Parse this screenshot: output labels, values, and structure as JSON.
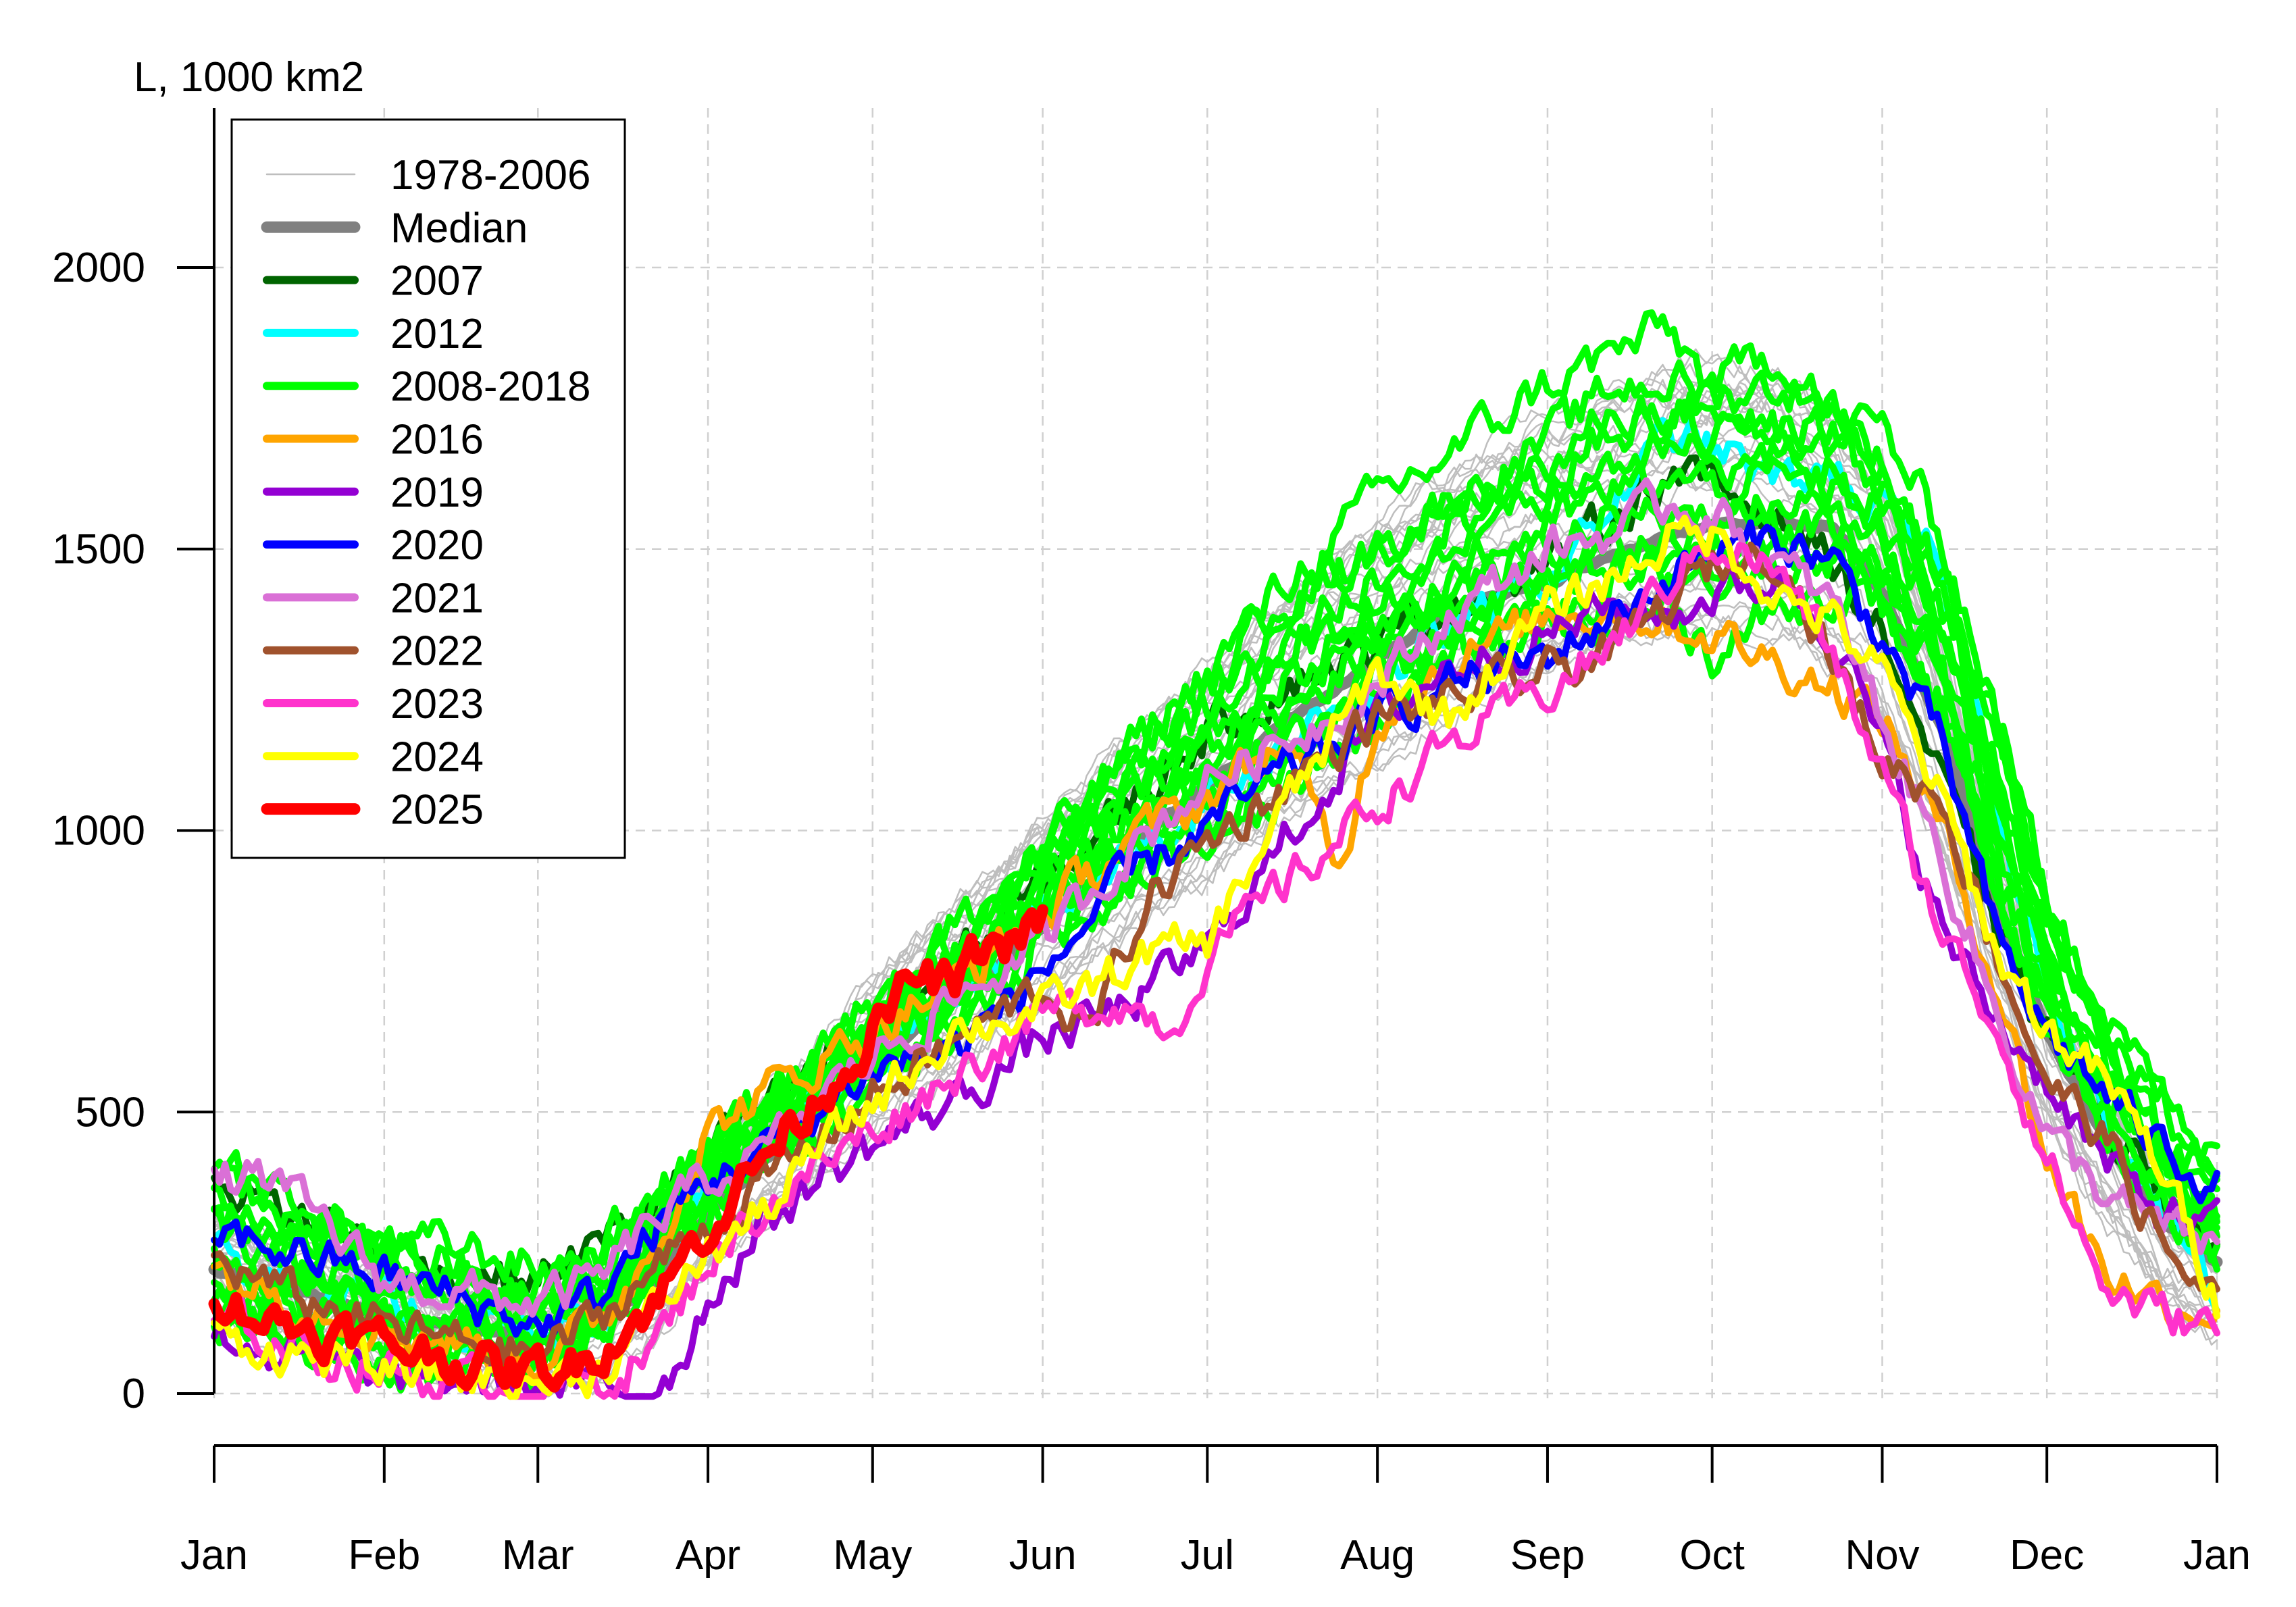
{
  "chart_data": {
    "type": "line",
    "ylabel": "L, 1000 km2",
    "ylim": [
      -85,
      2280
    ],
    "yticks": [
      0,
      500,
      1000,
      1500,
      2000
    ],
    "xlim": [
      0,
      365
    ],
    "xticks": [
      {
        "day": 0,
        "label": "Jan"
      },
      {
        "day": 31,
        "label": "Feb"
      },
      {
        "day": 59,
        "label": "Mar"
      },
      {
        "day": 90,
        "label": "Apr"
      },
      {
        "day": 120,
        "label": "May"
      },
      {
        "day": 151,
        "label": "Jun"
      },
      {
        "day": 181,
        "label": "Jul"
      },
      {
        "day": 212,
        "label": "Aug"
      },
      {
        "day": 243,
        "label": "Sep"
      },
      {
        "day": 273,
        "label": "Oct"
      },
      {
        "day": 304,
        "label": "Nov"
      },
      {
        "day": 334,
        "label": "Dec"
      },
      {
        "day": 365,
        "label": "Jan"
      }
    ],
    "grid": true,
    "legend_position": "top-left",
    "series": [
      {
        "name": "1978-2006",
        "color": "#bebebe",
        "width": "thin",
        "x": [
          0,
          15,
          31,
          45,
          59,
          70,
          80,
          90,
          100,
          110,
          120,
          135,
          151,
          165,
          181,
          195,
          212,
          225,
          243,
          255,
          265,
          273,
          285,
          295,
          304,
          315,
          325,
          334,
          345,
          355,
          365
        ],
        "y": [
          230,
          185,
          145,
          120,
          95,
          110,
          190,
          330,
          420,
          510,
          610,
          730,
          870,
          990,
          1110,
          1230,
          1340,
          1430,
          1520,
          1570,
          1590,
          1600,
          1600,
          1540,
          1430,
          1150,
          850,
          620,
          420,
          270,
          190
        ]
      },
      {
        "name": "Median",
        "color": "#808080",
        "width": "thick",
        "x": [
          0,
          15,
          31,
          45,
          59,
          70,
          80,
          90,
          100,
          110,
          120,
          135,
          151,
          165,
          181,
          195,
          212,
          225,
          243,
          255,
          265,
          273,
          285,
          295,
          304,
          315,
          325,
          334,
          345,
          355,
          365
        ],
        "y": [
          220,
          180,
          140,
          115,
          95,
          120,
          200,
          320,
          410,
          500,
          590,
          700,
          830,
          960,
          1080,
          1190,
          1300,
          1390,
          1440,
          1490,
          1520,
          1540,
          1550,
          1540,
          1420,
          1180,
          870,
          640,
          450,
          310,
          230
        ]
      },
      {
        "name": "2007",
        "color": "#006400",
        "width": "normal",
        "x": [
          0,
          10,
          20,
          31,
          45,
          59,
          70,
          80,
          90,
          100,
          110,
          120,
          135,
          151,
          165,
          181,
          195,
          212,
          225,
          243,
          255,
          265,
          273,
          285,
          295,
          304,
          315,
          325,
          334,
          345,
          355,
          365
        ],
        "y": [
          400,
          330,
          300,
          260,
          210,
          205,
          260,
          340,
          420,
          500,
          580,
          660,
          760,
          900,
          1030,
          1180,
          1260,
          1330,
          1400,
          1470,
          1560,
          1640,
          1610,
          1560,
          1480,
          1350,
          1080,
          820,
          640,
          490,
          360,
          260
        ]
      },
      {
        "name": "2012",
        "color": "#00ffff",
        "width": "normal",
        "x": [
          0,
          15,
          31,
          45,
          59,
          70,
          80,
          90,
          100,
          110,
          120,
          135,
          151,
          165,
          181,
          195,
          212,
          225,
          243,
          255,
          265,
          273,
          285,
          295,
          304,
          315,
          325,
          334,
          345,
          355,
          365
        ],
        "y": [
          240,
          190,
          150,
          120,
          100,
          130,
          230,
          360,
          440,
          520,
          600,
          700,
          840,
          950,
          1060,
          1150,
          1260,
          1350,
          1450,
          1580,
          1700,
          1680,
          1620,
          1640,
          1560,
          1460,
          1060,
          720,
          470,
          300,
          200
        ]
      },
      {
        "name": "2008-2018",
        "color": "#00ff00",
        "width": "normal",
        "count": 11,
        "x": [
          0,
          15,
          31,
          45,
          59,
          70,
          80,
          90,
          100,
          110,
          120,
          135,
          151,
          165,
          181,
          195,
          212,
          225,
          243,
          255,
          265,
          273,
          285,
          295,
          304,
          315,
          325,
          334,
          345,
          355,
          365
        ],
        "y": [
          260,
          210,
          170,
          145,
          120,
          170,
          270,
          390,
          460,
          540,
          620,
          730,
          880,
          1010,
          1140,
          1270,
          1380,
          1460,
          1540,
          1600,
          1620,
          1610,
          1620,
          1610,
          1540,
          1350,
          1050,
          780,
          560,
          420,
          330
        ],
        "spread": [
          150,
          150,
          120,
          100,
          90,
          80,
          80,
          70,
          70,
          70,
          70,
          80,
          90,
          120,
          140,
          160,
          180,
          200,
          220,
          240,
          250,
          250,
          200,
          170,
          160,
          160,
          160,
          140,
          110,
          90,
          80
        ]
      },
      {
        "name": "2016",
        "color": "#ffa500",
        "width": "normal",
        "x": [
          0,
          15,
          31,
          45,
          59,
          70,
          80,
          90,
          100,
          110,
          120,
          135,
          151,
          165,
          181,
          195,
          205,
          212,
          225,
          243,
          255,
          265,
          273,
          285,
          295,
          304,
          315,
          325,
          334,
          345,
          355,
          365
        ],
        "y": [
          220,
          170,
          120,
          90,
          70,
          120,
          260,
          470,
          530,
          590,
          650,
          730,
          850,
          970,
          1060,
          1160,
          930,
          1200,
          1300,
          1380,
          1400,
          1370,
          1350,
          1300,
          1260,
          1200,
          1000,
          720,
          420,
          220,
          160,
          150
        ]
      },
      {
        "name": "2019",
        "color": "#9400d3",
        "width": "normal",
        "x": [
          0,
          15,
          31,
          45,
          59,
          70,
          78,
          85,
          90,
          100,
          110,
          120,
          135,
          151,
          165,
          181,
          195,
          212,
          225,
          243,
          255,
          265,
          273,
          285,
          295,
          304,
          315,
          325,
          334,
          345,
          355,
          365
        ],
        "y": [
          110,
          60,
          30,
          20,
          15,
          5,
          0,
          60,
          170,
          300,
          380,
          440,
          520,
          630,
          680,
          790,
          980,
          1200,
          1290,
          1350,
          1400,
          1380,
          1420,
          1450,
          1360,
          1150,
          820,
          660,
          560,
          400,
          320,
          290
        ]
      },
      {
        "name": "2020",
        "color": "#0000ff",
        "width": "normal",
        "x": [
          0,
          15,
          31,
          45,
          59,
          70,
          80,
          90,
          100,
          110,
          120,
          135,
          151,
          165,
          181,
          195,
          212,
          225,
          243,
          255,
          265,
          273,
          285,
          295,
          304,
          315,
          325,
          334,
          345,
          355,
          365
        ],
        "y": [
          290,
          250,
          210,
          170,
          120,
          170,
          290,
          380,
          430,
          500,
          580,
          610,
          750,
          900,
          1010,
          1100,
          1200,
          1260,
          1310,
          1380,
          1450,
          1490,
          1520,
          1480,
          1340,
          1150,
          800,
          640,
          530,
          440,
          370
        ]
      },
      {
        "name": "2021",
        "color": "#da70d6",
        "width": "normal",
        "x": [
          0,
          10,
          20,
          31,
          45,
          59,
          70,
          80,
          90,
          100,
          110,
          120,
          135,
          151,
          165,
          181,
          195,
          212,
          225,
          243,
          255,
          265,
          273,
          285,
          295,
          304,
          315,
          325,
          334,
          345,
          355,
          365
        ],
        "y": [
          380,
          380,
          300,
          200,
          180,
          160,
          200,
          300,
          380,
          420,
          520,
          600,
          700,
          800,
          950,
          1090,
          1160,
          1260,
          1380,
          1500,
          1530,
          1580,
          1570,
          1470,
          1400,
          1200,
          950,
          670,
          460,
          350,
          290,
          260
        ]
      },
      {
        "name": "2022",
        "color": "#a0522d",
        "width": "normal",
        "x": [
          0,
          15,
          31,
          45,
          59,
          70,
          80,
          90,
          100,
          110,
          120,
          135,
          151,
          160,
          170,
          181,
          195,
          212,
          225,
          243,
          255,
          265,
          273,
          285,
          295,
          304,
          315,
          325,
          334,
          345,
          355,
          365
        ],
        "y": [
          240,
          170,
          120,
          90,
          70,
          130,
          220,
          300,
          370,
          450,
          530,
          620,
          720,
          640,
          880,
          980,
          1080,
          1200,
          1230,
          1280,
          1320,
          1400,
          1470,
          1500,
          1300,
          1130,
          1060,
          780,
          560,
          450,
          260,
          160
        ]
      },
      {
        "name": "2023",
        "color": "#ff33cc",
        "width": "normal",
        "x": [
          0,
          15,
          31,
          45,
          59,
          70,
          80,
          90,
          100,
          110,
          120,
          135,
          151,
          165,
          175,
          181,
          195,
          212,
          225,
          243,
          255,
          265,
          273,
          285,
          295,
          304,
          315,
          325,
          334,
          345,
          355,
          365
        ],
        "y": [
          130,
          80,
          40,
          20,
          15,
          15,
          80,
          240,
          330,
          400,
          470,
          570,
          670,
          700,
          650,
          780,
          900,
          1050,
          1150,
          1250,
          1330,
          1440,
          1520,
          1460,
          1310,
          1100,
          820,
          650,
          420,
          180,
          140,
          120
        ]
      },
      {
        "name": "2024",
        "color": "#ffff00",
        "width": "normal",
        "x": [
          0,
          15,
          31,
          45,
          59,
          70,
          80,
          90,
          100,
          110,
          120,
          135,
          151,
          160,
          170,
          181,
          195,
          212,
          225,
          243,
          255,
          265,
          273,
          285,
          295,
          304,
          315,
          325,
          334,
          345,
          355,
          365
        ],
        "y": [
          100,
          70,
          40,
          30,
          20,
          40,
          140,
          250,
          320,
          430,
          520,
          650,
          680,
          720,
          780,
          800,
          1040,
          1280,
          1200,
          1390,
          1450,
          1520,
          1530,
          1420,
          1370,
          1280,
          1050,
          780,
          650,
          550,
          400,
          170
        ]
      },
      {
        "name": "2025",
        "color": "#ff0000",
        "width": "thick",
        "x": [
          0,
          10,
          20,
          31,
          45,
          52,
          59,
          65,
          70,
          75,
          80,
          90,
          100,
          110,
          120,
          128,
          135,
          140,
          145,
          151
        ],
        "y": [
          180,
          130,
          110,
          90,
          60,
          40,
          40,
          50,
          80,
          120,
          160,
          300,
          420,
          530,
          640,
          740,
          720,
          790,
          800,
          840
        ]
      }
    ]
  }
}
